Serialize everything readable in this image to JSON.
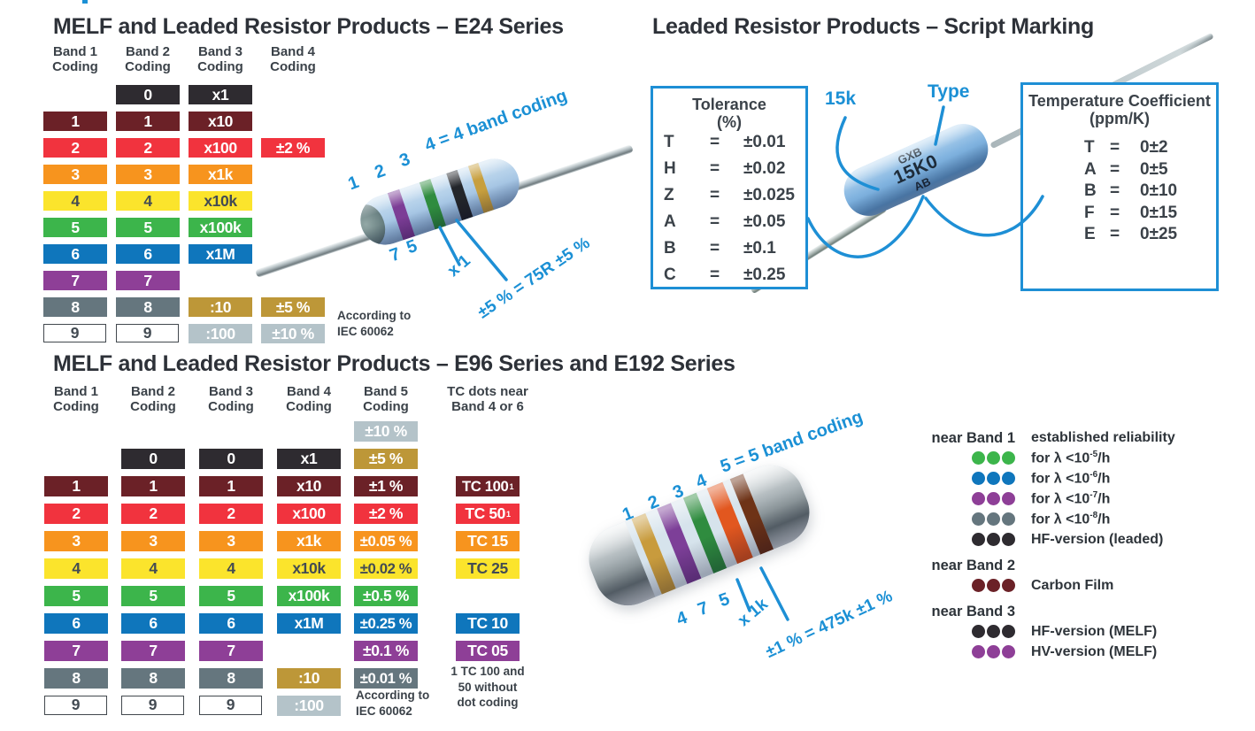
{
  "colors": {
    "black": "#2e2b30",
    "brown": "#6b2127",
    "red": "#f1333e",
    "orange": "#f7941e",
    "yellow": "#fbe42c",
    "green": "#3cb54b",
    "blue": "#0f76bc",
    "purple": "#8e3f97",
    "slate": "#65767e",
    "gold": "#bd9738",
    "silver": "#b4c3c9",
    "white": "#ffffff",
    "annotation_blue": "#1b90d5",
    "dark_text": "#434b53"
  },
  "e24": {
    "title": "MELF and Leaded Resistor Products – E24 Series",
    "headers": [
      [
        "Band 1",
        "Coding"
      ],
      [
        "Band 2",
        "Coding"
      ],
      [
        "Band 3",
        "Coding"
      ],
      [
        "Band 4",
        "Coding"
      ]
    ],
    "rows": [
      [
        null,
        {
          "t": "0",
          "c": "black"
        },
        {
          "t": "x1",
          "c": "black"
        },
        null
      ],
      [
        {
          "t": "1",
          "c": "brown"
        },
        {
          "t": "1",
          "c": "brown"
        },
        {
          "t": "x10",
          "c": "brown"
        },
        null
      ],
      [
        {
          "t": "2",
          "c": "red"
        },
        {
          "t": "2",
          "c": "red"
        },
        {
          "t": "x100",
          "c": "red"
        },
        {
          "t": "±2 %",
          "c": "red"
        }
      ],
      [
        {
          "t": "3",
          "c": "orange"
        },
        {
          "t": "3",
          "c": "orange"
        },
        {
          "t": "x1k",
          "c": "orange"
        },
        null
      ],
      [
        {
          "t": "4",
          "c": "yellow"
        },
        {
          "t": "4",
          "c": "yellow"
        },
        {
          "t": "x10k",
          "c": "yellow"
        },
        null
      ],
      [
        {
          "t": "5",
          "c": "green"
        },
        {
          "t": "5",
          "c": "green"
        },
        {
          "t": "x100k",
          "c": "green"
        },
        null
      ],
      [
        {
          "t": "6",
          "c": "blue"
        },
        {
          "t": "6",
          "c": "blue"
        },
        {
          "t": "x1M",
          "c": "blue"
        },
        null
      ],
      [
        {
          "t": "7",
          "c": "purple"
        },
        {
          "t": "7",
          "c": "purple"
        },
        null,
        null
      ],
      [
        {
          "t": "8",
          "c": "slate"
        },
        {
          "t": "8",
          "c": "slate"
        },
        {
          "t": ":10",
          "c": "gold"
        },
        {
          "t": "±5 %",
          "c": "gold"
        }
      ],
      [
        {
          "t": "9",
          "c": "white"
        },
        {
          "t": "9",
          "c": "white"
        },
        {
          "t": ":100",
          "c": "silver"
        },
        {
          "t": "±10 %",
          "c": "silver"
        }
      ]
    ],
    "note": [
      "According to",
      "IEC 60062"
    ],
    "annotations": {
      "n1": "1",
      "n2": "2",
      "n3": "3",
      "n4": "4 = 4 band coding",
      "n7": "7",
      "n5": "5",
      "mult": "x 1",
      "result": "±5 % = 75R ±5 %"
    }
  },
  "script": {
    "title": "Leaded Resistor Products – Script Marking",
    "tolerance": {
      "title": "Tolerance",
      "unit": "(%)",
      "eq": "=",
      "rows": [
        [
          "T",
          "±0.01"
        ],
        [
          "H",
          "±0.02"
        ],
        [
          "Z",
          "±0.025"
        ],
        [
          "A",
          "±0.05"
        ],
        [
          "B",
          "±0.1"
        ],
        [
          "C",
          "±0.25"
        ]
      ]
    },
    "tempco": {
      "title": "Temperature Coefficient",
      "unit": "(ppm/K)",
      "eq": "=",
      "rows": [
        [
          "T",
          "0±2"
        ],
        [
          "A",
          "0±5"
        ],
        [
          "B",
          "0±10"
        ],
        [
          "F",
          "0±15"
        ],
        [
          "E",
          "0±25"
        ]
      ]
    },
    "value_label": "15k",
    "type_label": "Type",
    "resistor_lines": [
      "GXB",
      "15K0",
      "AB"
    ]
  },
  "e96": {
    "title": "MELF and Leaded Resistor Products – E96 Series and E192 Series",
    "headers": [
      [
        "Band 1",
        "Coding"
      ],
      [
        "Band 2",
        "Coding"
      ],
      [
        "Band 3",
        "Coding"
      ],
      [
        "Band 4",
        "Coding"
      ],
      [
        "Band 5",
        "Coding"
      ],
      [
        "TC dots near",
        "Band 4 or 6"
      ]
    ],
    "rows": [
      [
        null,
        null,
        null,
        null,
        {
          "t": "±10 %",
          "c": "silver"
        },
        null
      ],
      [
        null,
        {
          "t": "0",
          "c": "black"
        },
        {
          "t": "0",
          "c": "black"
        },
        {
          "t": "x1",
          "c": "black"
        },
        {
          "t": "±5 %",
          "c": "gold"
        },
        null
      ],
      [
        {
          "t": "1",
          "c": "brown"
        },
        {
          "t": "1",
          "c": "brown"
        },
        {
          "t": "1",
          "c": "brown"
        },
        {
          "t": "x10",
          "c": "brown"
        },
        {
          "t": "±1 %",
          "c": "brown"
        },
        {
          "t": "TC 100",
          "sup": "1",
          "c": "brown"
        }
      ],
      [
        {
          "t": "2",
          "c": "red"
        },
        {
          "t": "2",
          "c": "red"
        },
        {
          "t": "2",
          "c": "red"
        },
        {
          "t": "x100",
          "c": "red"
        },
        {
          "t": "±2 %",
          "c": "red"
        },
        {
          "t": "TC 50",
          "sup": "1",
          "c": "red"
        }
      ],
      [
        {
          "t": "3",
          "c": "orange"
        },
        {
          "t": "3",
          "c": "orange"
        },
        {
          "t": "3",
          "c": "orange"
        },
        {
          "t": "x1k",
          "c": "orange"
        },
        {
          "t": "±0.05 %",
          "c": "orange"
        },
        {
          "t": "TC 15",
          "c": "orange"
        }
      ],
      [
        {
          "t": "4",
          "c": "yellow"
        },
        {
          "t": "4",
          "c": "yellow"
        },
        {
          "t": "4",
          "c": "yellow"
        },
        {
          "t": "x10k",
          "c": "yellow"
        },
        {
          "t": "±0.02 %",
          "c": "yellow"
        },
        {
          "t": "TC 25",
          "c": "yellow"
        }
      ],
      [
        {
          "t": "5",
          "c": "green"
        },
        {
          "t": "5",
          "c": "green"
        },
        {
          "t": "5",
          "c": "green"
        },
        {
          "t": "x100k",
          "c": "green"
        },
        {
          "t": "±0.5 %",
          "c": "green"
        },
        null
      ],
      [
        {
          "t": "6",
          "c": "blue"
        },
        {
          "t": "6",
          "c": "blue"
        },
        {
          "t": "6",
          "c": "blue"
        },
        {
          "t": "x1M",
          "c": "blue"
        },
        {
          "t": "±0.25 %",
          "c": "blue"
        },
        {
          "t": "TC 10",
          "c": "blue"
        }
      ],
      [
        {
          "t": "7",
          "c": "purple"
        },
        {
          "t": "7",
          "c": "purple"
        },
        {
          "t": "7",
          "c": "purple"
        },
        null,
        {
          "t": "±0.1 %",
          "c": "purple"
        },
        {
          "t": "TC 05",
          "c": "purple"
        }
      ],
      [
        {
          "t": "8",
          "c": "slate"
        },
        {
          "t": "8",
          "c": "slate"
        },
        {
          "t": "8",
          "c": "slate"
        },
        {
          "t": ":10",
          "c": "gold"
        },
        {
          "t": "±0.01 %",
          "c": "slate"
        },
        null
      ],
      [
        {
          "t": "9",
          "c": "white"
        },
        {
          "t": "9",
          "c": "white"
        },
        {
          "t": "9",
          "c": "white"
        },
        {
          "t": ":100",
          "c": "silver"
        },
        null,
        null
      ]
    ],
    "note": [
      "According to",
      "IEC 60062"
    ],
    "footnote": [
      "1 TC 100 and",
      "50 without",
      "dot coding"
    ],
    "annotations": {
      "n1": "1",
      "n2": "2",
      "n3": "3",
      "n4": "4",
      "n5": "5 = 5 band coding",
      "b4": "4",
      "b7": "7",
      "b5": "5",
      "mult": "x 1k",
      "result": "±1 % = 475k ±1 %"
    }
  },
  "legend": {
    "groups": [
      {
        "label": "near Band 1",
        "heading": "established reliability",
        "items": [
          {
            "color": "green",
            "pre": "for λ <10",
            "sup": "-5",
            "post": "/h"
          },
          {
            "color": "blue",
            "pre": "for λ <10",
            "sup": "-6",
            "post": "/h"
          },
          {
            "color": "purple",
            "pre": "for λ <10",
            "sup": "-7",
            "post": "/h"
          },
          {
            "color": "slate",
            "pre": "for λ <10",
            "sup": "-8",
            "post": "/h"
          },
          {
            "color": "black",
            "pre": "HF-version (leaded)",
            "sup": "",
            "post": ""
          }
        ]
      },
      {
        "label": "near Band 2",
        "heading": "",
        "items": [
          {
            "color": "brown",
            "pre": "Carbon Film",
            "sup": "",
            "post": ""
          }
        ]
      },
      {
        "label": "near Band 3",
        "heading": "",
        "items": [
          {
            "color": "black",
            "pre": "HF-version (MELF)",
            "sup": "",
            "post": ""
          },
          {
            "color": "purple",
            "pre": "HV-version (MELF)",
            "sup": "",
            "post": ""
          }
        ]
      }
    ]
  }
}
